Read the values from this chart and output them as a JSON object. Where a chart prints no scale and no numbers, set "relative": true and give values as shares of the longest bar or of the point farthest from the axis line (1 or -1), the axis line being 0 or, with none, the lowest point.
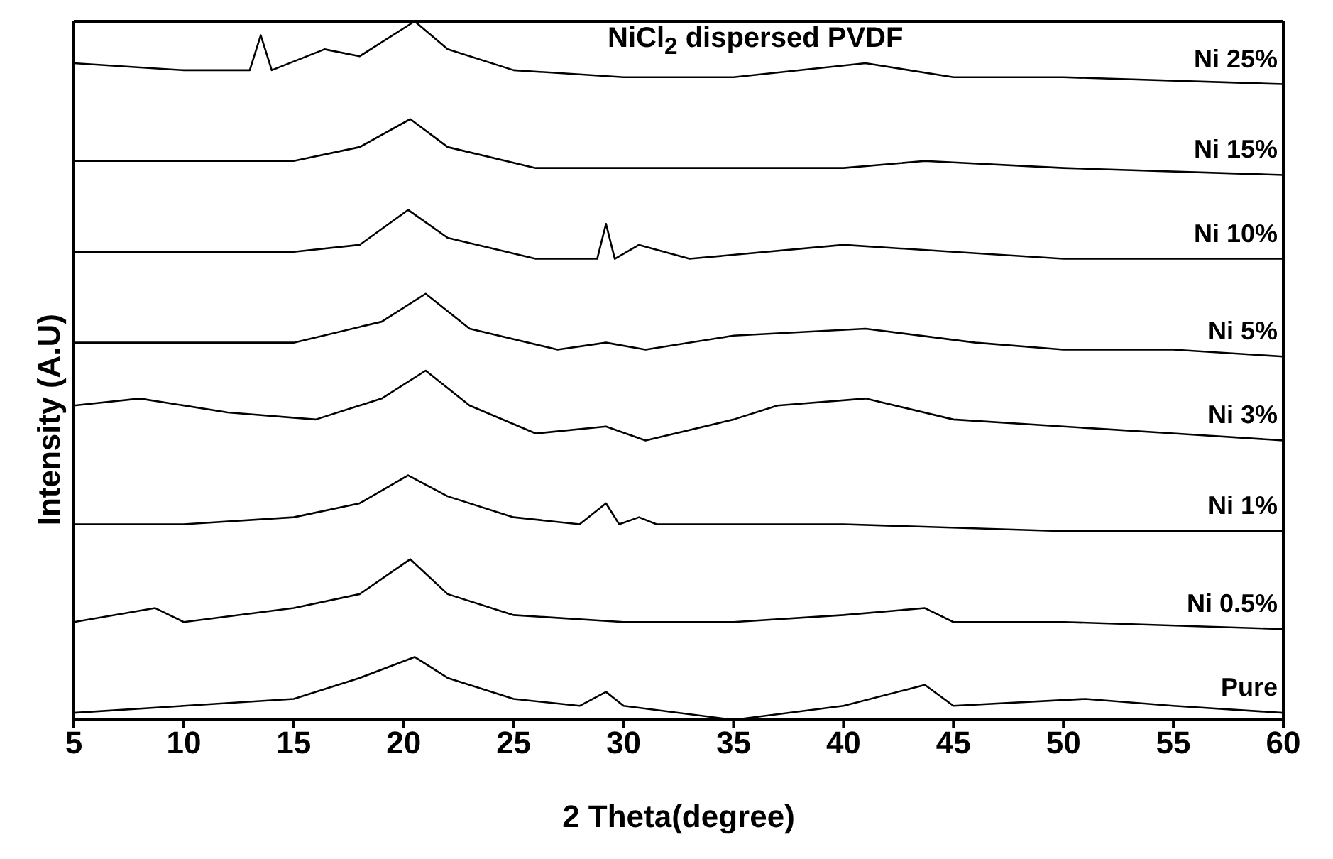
{
  "chart_data": {
    "type": "line",
    "title": "NiCl$_{2}$ dispersed PVDF",
    "xlabel": "2 Theta(degree)",
    "ylabel": "Intensity (A.U)",
    "relative": true,
    "xlim": [
      5,
      60
    ],
    "xticks": [
      5,
      10,
      15,
      20,
      25,
      30,
      35,
      40,
      45,
      50,
      55,
      60
    ],
    "marker": "none",
    "line_style": "solid",
    "series": [
      {
        "name": "Pure",
        "color": "#000000",
        "x": [
          5,
          10,
          15,
          18,
          20.5,
          22,
          25,
          28,
          29.2,
          30,
          35,
          40,
          43.7,
          45,
          51,
          55,
          60
        ],
        "values": [
          0.01,
          0.02,
          0.03,
          0.06,
          0.09,
          0.06,
          0.03,
          0.02,
          0.04,
          0.02,
          0,
          0.02,
          0.05,
          0.02,
          0.03,
          0.02,
          0.01
        ]
      },
      {
        "name": "Ni 0.5%",
        "color": "#000000",
        "x": [
          5,
          8.7,
          10,
          15,
          18,
          20.3,
          22,
          25,
          30,
          35,
          40,
          43.7,
          45,
          50,
          60
        ],
        "values": [
          0.14,
          0.16,
          0.14,
          0.16,
          0.18,
          0.23,
          0.18,
          0.15,
          0.14,
          0.14,
          0.15,
          0.16,
          0.14,
          0.14,
          0.13
        ]
      },
      {
        "name": "Ni 1%",
        "color": "#000000",
        "x": [
          5,
          10,
          15,
          18,
          20.2,
          22,
          25,
          28,
          29.2,
          29.8,
          30.7,
          31.5,
          35,
          40,
          50,
          60
        ],
        "values": [
          0.28,
          0.28,
          0.29,
          0.31,
          0.35,
          0.32,
          0.29,
          0.28,
          0.31,
          0.28,
          0.29,
          0.28,
          0.28,
          0.28,
          0.27,
          0.27
        ]
      },
      {
        "name": "Ni 3%",
        "color": "#000000",
        "x": [
          5,
          8,
          12,
          16,
          19,
          21,
          23,
          26,
          29.2,
          31,
          35,
          37,
          41,
          45,
          50,
          55,
          60
        ],
        "values": [
          0.45,
          0.46,
          0.44,
          0.43,
          0.46,
          0.5,
          0.45,
          0.41,
          0.42,
          0.4,
          0.43,
          0.45,
          0.46,
          0.43,
          0.42,
          0.41,
          0.4
        ]
      },
      {
        "name": "Ni 5%",
        "color": "#000000",
        "x": [
          5,
          15,
          19,
          21,
          23,
          27,
          29.2,
          31,
          35,
          41,
          46,
          50,
          55,
          60
        ],
        "values": [
          0.54,
          0.54,
          0.57,
          0.61,
          0.56,
          0.53,
          0.54,
          0.53,
          0.55,
          0.56,
          0.54,
          0.53,
          0.53,
          0.52
        ]
      },
      {
        "name": "Ni 10%",
        "color": "#000000",
        "x": [
          5,
          15,
          18,
          20.2,
          22,
          26,
          28.8,
          29.2,
          29.6,
          30.7,
          33,
          40,
          45,
          50,
          60
        ],
        "values": [
          0.67,
          0.67,
          0.68,
          0.73,
          0.69,
          0.66,
          0.66,
          0.71,
          0.66,
          0.68,
          0.66,
          0.68,
          0.67,
          0.66,
          0.66
        ]
      },
      {
        "name": "Ni 15%",
        "color": "#000000",
        "x": [
          5,
          15,
          18,
          20.3,
          22,
          26,
          30,
          40,
          43.7,
          50,
          60
        ],
        "values": [
          0.8,
          0.8,
          0.82,
          0.86,
          0.82,
          0.79,
          0.79,
          0.79,
          0.8,
          0.79,
          0.78
        ]
      },
      {
        "name": "Ni 25%",
        "color": "#000000",
        "x": [
          5,
          10,
          13,
          13.5,
          14,
          16.4,
          18,
          20.5,
          22,
          25,
          30,
          35,
          41,
          45,
          50,
          60
        ],
        "values": [
          0.94,
          0.93,
          0.93,
          0.98,
          0.93,
          0.96,
          0.95,
          1,
          0.96,
          0.93,
          0.92,
          0.92,
          0.94,
          0.92,
          0.92,
          0.91
        ]
      }
    ]
  }
}
